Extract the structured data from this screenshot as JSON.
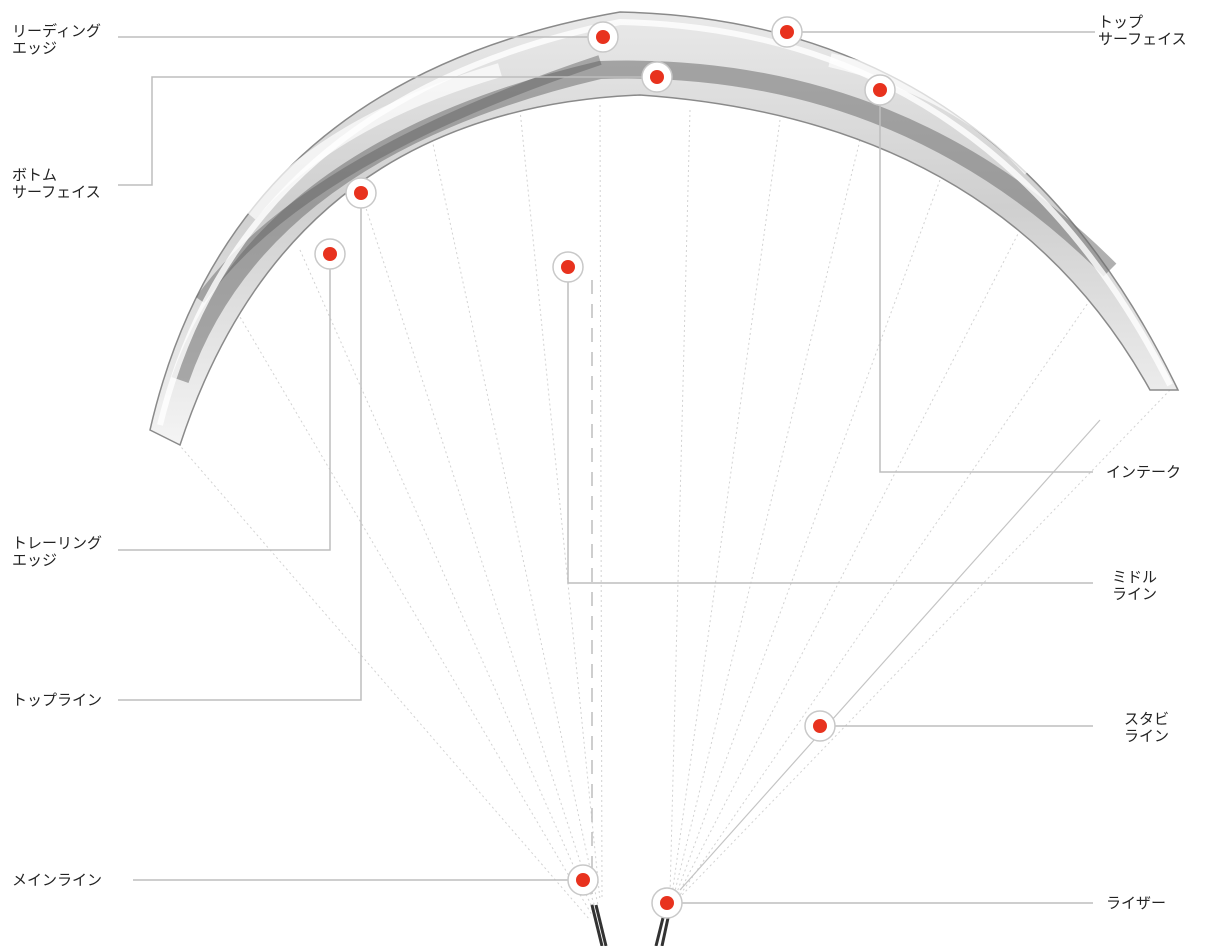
{
  "colors": {
    "marker": "#e8321e",
    "marker_ring": "#c8c8c8",
    "leader_line": "#bdbdbd",
    "canopy_dark": "#6f6f6f",
    "canopy_light": "#f2f2f2",
    "suspension_line": "#cfcfcf",
    "text": "#222222"
  },
  "labels": {
    "leading_edge": "リーディング\nエッジ",
    "bottom_surface": "ボトム\nサーフェイス",
    "trailing_edge": "トレーリング\nエッジ",
    "top_line": "トップライン",
    "main_line": "メインライン",
    "top_surface": "トップ\nサーフェイス",
    "intake": "インテーク",
    "middle_line": "ミドル\nライン",
    "stabi_line": "スタビ\nライン",
    "riser": "ライザー"
  }
}
